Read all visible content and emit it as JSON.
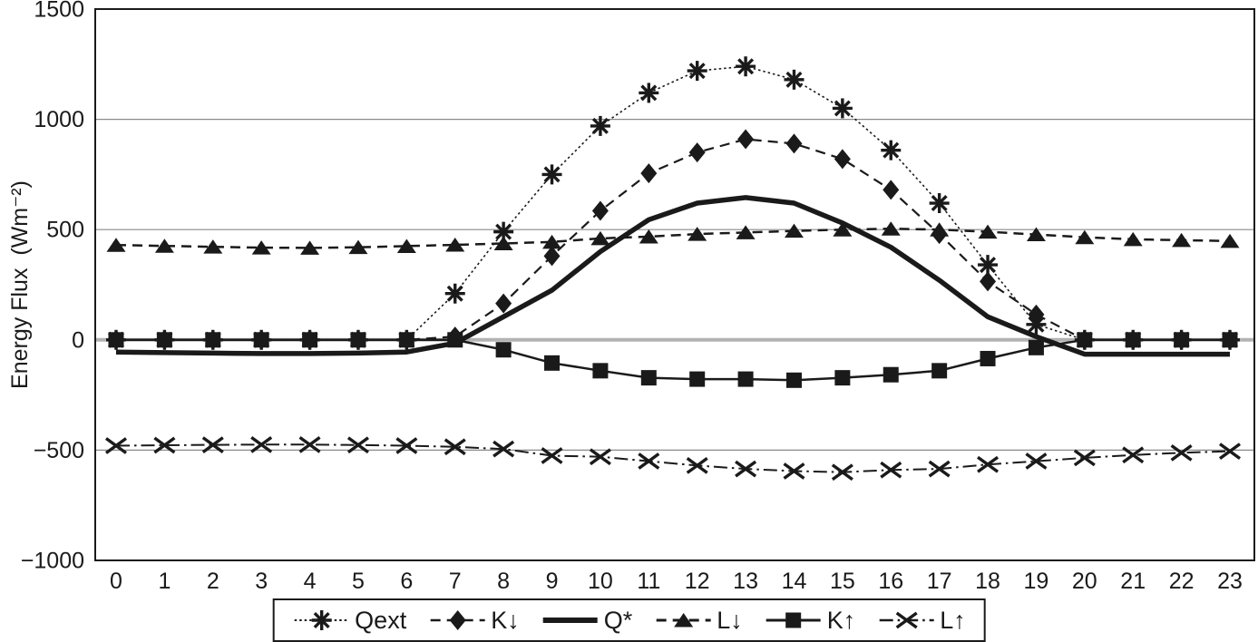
{
  "chart_data": {
    "type": "line",
    "title": "",
    "xlabel": "",
    "ylabel": "Energy Flux  (Wm⁻²)",
    "x": [
      0,
      1,
      2,
      3,
      4,
      5,
      6,
      7,
      8,
      9,
      10,
      11,
      12,
      13,
      14,
      15,
      16,
      17,
      18,
      19,
      20,
      21,
      22,
      23
    ],
    "x_tick_labels": [
      "0",
      "1",
      "2",
      "3",
      "4",
      "5",
      "6",
      "7",
      "8",
      "9",
      "10",
      "11",
      "12",
      "13",
      "14",
      "15",
      "16",
      "17",
      "18",
      "19",
      "20",
      "21",
      "22",
      "23"
    ],
    "ylim": [
      -1000,
      1500
    ],
    "y_ticks": [
      {
        "value": 1500,
        "label": "1500"
      },
      {
        "value": 1000,
        "label": "1000"
      },
      {
        "value": 500,
        "label": "500"
      },
      {
        "value": 0,
        "label": "0"
      },
      {
        "value": -500,
        "label": "−500"
      },
      {
        "value": -1000,
        "label": "−1000"
      }
    ],
    "gridlines": {
      "minor_values": [
        1000,
        500,
        -500
      ],
      "zero_value": 0,
      "grid_on": true
    },
    "legend_position": "bottom-center",
    "series": [
      {
        "name": "Qext",
        "label": "Qext",
        "marker": "asterisk",
        "line_style": "dotted",
        "line_width": 1.6,
        "values": [
          0,
          0,
          0,
          0,
          0,
          0,
          0,
          210,
          490,
          750,
          970,
          1120,
          1220,
          1240,
          1180,
          1050,
          860,
          620,
          340,
          70,
          0,
          0,
          0,
          0
        ]
      },
      {
        "name": "K-down",
        "label": "K↓",
        "marker": "diamond",
        "line_style": "dashed",
        "line_width": 2.2,
        "values": [
          0,
          0,
          0,
          0,
          0,
          0,
          0,
          15,
          165,
          380,
          585,
          755,
          850,
          910,
          890,
          820,
          680,
          480,
          265,
          115,
          0,
          0,
          0,
          0
        ]
      },
      {
        "name": "Q-star",
        "label": "Q*",
        "marker": "none",
        "line_style": "solid",
        "line_width": 5.5,
        "values": [
          -55,
          -58,
          -60,
          -62,
          -62,
          -60,
          -55,
          -15,
          105,
          225,
          400,
          545,
          620,
          645,
          620,
          530,
          420,
          270,
          105,
          15,
          -65,
          -65,
          -65,
          -65
        ]
      },
      {
        "name": "L-down",
        "label": "L↓",
        "marker": "triangle",
        "line_style": "dashed",
        "line_width": 2.5,
        "values": [
          430,
          426,
          422,
          418,
          417,
          420,
          425,
          431,
          437,
          444,
          460,
          468,
          480,
          487,
          494,
          500,
          504,
          500,
          490,
          478,
          465,
          456,
          452,
          448
        ]
      },
      {
        "name": "K-up",
        "label": "K↑",
        "marker": "square",
        "line_style": "solid",
        "line_width": 2.5,
        "values": [
          0,
          0,
          0,
          0,
          0,
          0,
          0,
          0,
          -45,
          -105,
          -140,
          -172,
          -178,
          -178,
          -183,
          -172,
          -158,
          -140,
          -85,
          -35,
          0,
          0,
          0,
          0
        ]
      },
      {
        "name": "L-up",
        "label": "L↑",
        "marker": "cross",
        "line_style": "dashdot",
        "line_width": 2.0,
        "values": [
          -480,
          -478,
          -476,
          -475,
          -475,
          -477,
          -480,
          -485,
          -495,
          -525,
          -530,
          -550,
          -570,
          -585,
          -595,
          -600,
          -590,
          -585,
          -565,
          -550,
          -535,
          -522,
          -512,
          -505
        ]
      }
    ],
    "colors": {
      "ink": "#1a1a1a",
      "grid": "#8a8a8a",
      "zero_line": "#b3b3b3",
      "background": "#ffffff"
    }
  }
}
